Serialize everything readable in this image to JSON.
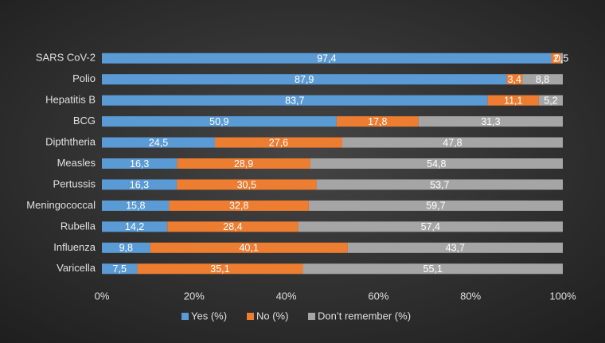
{
  "chart_data": {
    "type": "bar",
    "orientation": "horizontal",
    "stacked": "percent",
    "categories": [
      "SARS CoV-2",
      "Polio",
      "Hepatitis B",
      "BCG",
      "Dipththeria",
      "Measles",
      "Pertussis",
      "Meningococcal",
      "Rubella",
      "Influenza",
      "Varicella"
    ],
    "series": [
      {
        "name": "Yes (%)",
        "color": "#5b9bd5",
        "values": [
          97.4,
          87.9,
          83.7,
          50.9,
          24.5,
          16.3,
          16.3,
          15.8,
          14.2,
          9.8,
          7.5
        ],
        "value_labels": [
          "97,4",
          "87,9",
          "83,7",
          "50,9",
          "24,5",
          "16,3",
          "16,3",
          "15,8",
          "14,2",
          "9,8",
          "7,5"
        ]
      },
      {
        "name": "No (%)",
        "color": "#ed7d31",
        "values": [
          2,
          3.4,
          11.1,
          17.8,
          27.6,
          28.9,
          30.5,
          32.8,
          28.4,
          40.1,
          35.1
        ],
        "value_labels": [
          "2",
          "3,4",
          "11,1",
          "17,8",
          "27,6",
          "28,9",
          "30,5",
          "32,8",
          "28,4",
          "40,1",
          "35,1"
        ]
      },
      {
        "name": "Don’t remember (%)",
        "color": "#a5a5a5",
        "values": [
          0.5,
          8.8,
          5.2,
          31.3,
          47.8,
          54.8,
          53.7,
          59.7,
          57.4,
          43.7,
          55.1
        ],
        "value_labels": [
          "0,5",
          "8,8",
          "5,2",
          "31,3",
          "47,8",
          "54,8",
          "53,7",
          "59,7",
          "57,4",
          "43,7",
          "55,1"
        ]
      }
    ],
    "xlim": [
      0,
      100
    ],
    "xticks": [
      {
        "value": 0,
        "label": "0%"
      },
      {
        "value": 20,
        "label": "20%"
      },
      {
        "value": 40,
        "label": "40%"
      },
      {
        "value": 60,
        "label": "60%"
      },
      {
        "value": 80,
        "label": "80%"
      },
      {
        "value": 100,
        "label": "100%"
      }
    ],
    "grid": false,
    "legend": "bottom"
  }
}
